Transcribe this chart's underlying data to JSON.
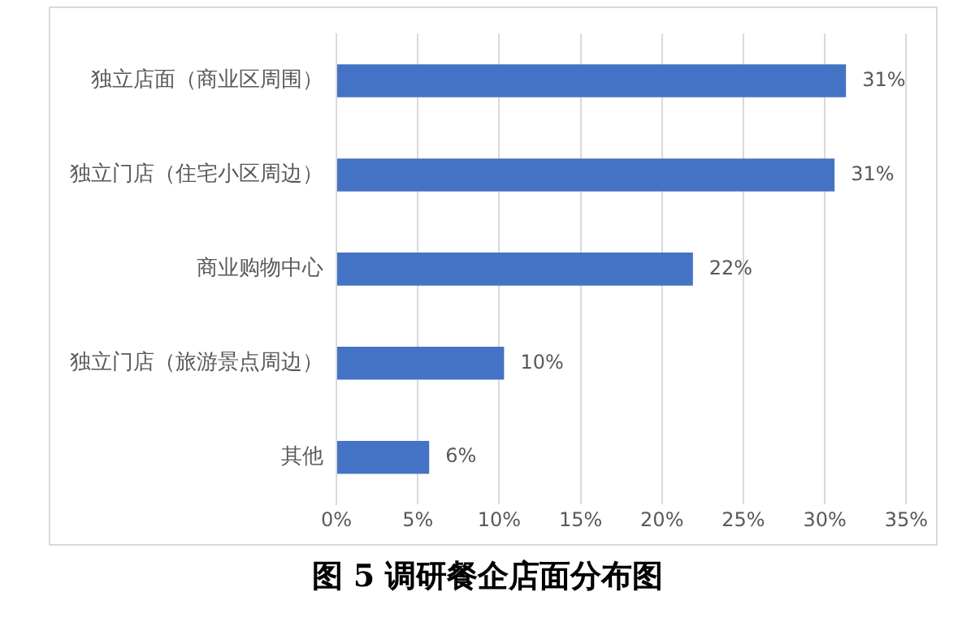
{
  "chart_data": {
    "type": "bar",
    "orientation": "horizontal",
    "title": "图 5 调研餐企店面分布图",
    "categories": [
      "独立店面（商业区周围）",
      "独立门店（住宅小区周边）",
      "商业购物中心",
      "独立门店（旅游景点周边）",
      "其他"
    ],
    "values": [
      31.3,
      30.6,
      21.9,
      10.3,
      5.7
    ],
    "value_labels": [
      "31%",
      "31%",
      "22%",
      "10%",
      "6%"
    ],
    "color": "#4472c4",
    "xlim": [
      0,
      35
    ],
    "xticks": [
      {
        "value": 0,
        "label": "0%"
      },
      {
        "value": 5,
        "label": "5%"
      },
      {
        "value": 10,
        "label": "10%"
      },
      {
        "value": 15,
        "label": "15%"
      },
      {
        "value": 20,
        "label": "20%"
      },
      {
        "value": 25,
        "label": "25%"
      },
      {
        "value": 30,
        "label": "30%"
      },
      {
        "value": 35,
        "label": "35%"
      }
    ],
    "grid": "x",
    "legend": false
  }
}
